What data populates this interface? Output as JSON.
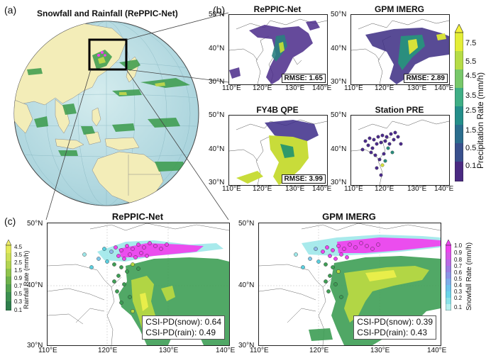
{
  "panel_a": {
    "letter": "(a)",
    "title": "Snowfall and Rainfall (RePPIC-Net)"
  },
  "panel_b": {
    "letter": "(b)",
    "maps": [
      {
        "title": "RePPIC-Net",
        "rmse": "RMSE: 1.65"
      },
      {
        "title": "GPM IMERG",
        "rmse": "RMSE: 2.89"
      },
      {
        "title": "FY4B QPE",
        "rmse": "RMSE: 3.99"
      },
      {
        "title": "Station PRE",
        "rmse": ""
      }
    ],
    "lat_ticks": [
      "50°N",
      "40°N",
      "30°N"
    ],
    "lon_ticks": [
      "110°E",
      "120°E",
      "130°E",
      "140°E"
    ],
    "colorbar": {
      "title": "Precipitation Rate (mm/h)",
      "ticks": [
        "7.5",
        "5.5",
        "4.5",
        "3.5",
        "2.5",
        "1.5",
        "0.5",
        "0.1"
      ]
    }
  },
  "panel_c": {
    "letter": "(c)",
    "maps": [
      {
        "title": "RePPIC-Net",
        "csi_snow": "CSI-PD(snow): 0.64",
        "csi_rain": "CSI-PD(rain): 0.49"
      },
      {
        "title": "GPM IMERG",
        "csi_snow": "CSI-PD(snow): 0.39",
        "csi_rain": "CSI-PD(rain): 0.43"
      }
    ],
    "lat_ticks": [
      "50°N",
      "40°N",
      "30°N"
    ],
    "lon_ticks": [
      "110°E",
      "120°E",
      "130°E",
      "140°E"
    ],
    "rain_colorbar": {
      "title": "Rainfall Rate (mm/h)",
      "ticks": [
        "4.5",
        "3.5",
        "2.5",
        "1.5",
        "0.9",
        "0.7",
        "0.5",
        "0.3",
        "0.1"
      ]
    },
    "snow_colorbar": {
      "title": "Snowfall Rate (mm/h)",
      "ticks": [
        "1.0",
        "0.9",
        "0.8",
        "0.7",
        "0.6",
        "0.5",
        "0.4",
        "0.3",
        "0.2",
        "0.1"
      ]
    }
  }
}
